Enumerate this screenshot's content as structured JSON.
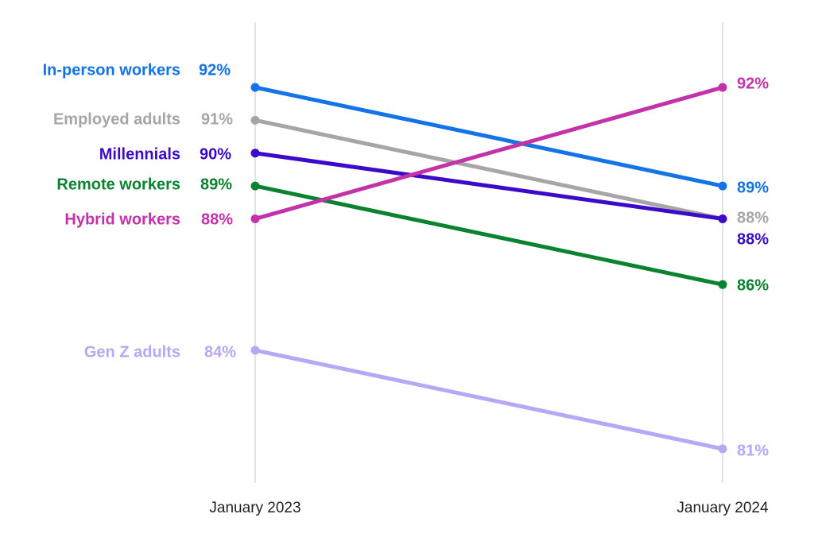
{
  "chart_data": {
    "type": "line",
    "x": [
      "January 2023",
      "January 2024"
    ],
    "ylim": [
      79,
      94
    ],
    "grid": false,
    "legend": "labels at line ends",
    "series": [
      {
        "name": "In-person workers",
        "values": [
          92,
          89
        ],
        "labels": [
          "92%",
          "89%"
        ],
        "color": "#1473e6"
      },
      {
        "name": "Employed adults",
        "values": [
          91,
          88
        ],
        "labels": [
          "91%",
          "88%"
        ],
        "color": "#a6a6a6"
      },
      {
        "name": "Millennials",
        "values": [
          90,
          88
        ],
        "labels": [
          "90%",
          "88%"
        ],
        "color": "#3b0bc9"
      },
      {
        "name": "Remote workers",
        "values": [
          89,
          86
        ],
        "labels": [
          "89%",
          "86%"
        ],
        "color": "#0a8230"
      },
      {
        "name": "Hybrid workers",
        "values": [
          88,
          92
        ],
        "labels": [
          "88%",
          "92%"
        ],
        "color": "#c332a8"
      },
      {
        "name": "Gen Z adults",
        "values": [
          84,
          81
        ],
        "labels": [
          "84%",
          "81%"
        ],
        "color": "#b8a6f6"
      }
    ]
  }
}
